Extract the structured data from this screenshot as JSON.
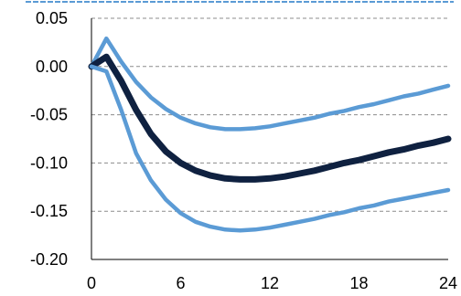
{
  "chart_data": {
    "type": "line",
    "title": "",
    "xlabel": "",
    "ylabel": "",
    "xlim": [
      0,
      24
    ],
    "ylim": [
      -0.2,
      0.05
    ],
    "x_ticks": [
      "0",
      "6",
      "12",
      "18",
      "24"
    ],
    "y_ticks": [
      "0.05",
      "0.00",
      "-0.05",
      "-0.10",
      "-0.15",
      "-0.20"
    ],
    "grid": "horizontal dashed",
    "legend": "none",
    "series": [
      {
        "role": "upper band",
        "color": "#5b9bd5",
        "x": [
          0,
          1,
          2,
          3,
          4,
          5,
          6,
          7,
          8,
          9,
          10,
          11,
          12,
          13,
          14,
          15,
          16,
          17,
          18,
          19,
          20,
          21,
          22,
          23,
          24
        ],
        "values": [
          0.0,
          0.029,
          0.005,
          -0.016,
          -0.032,
          -0.044,
          -0.053,
          -0.059,
          -0.063,
          -0.065,
          -0.065,
          -0.064,
          -0.062,
          -0.059,
          -0.056,
          -0.053,
          -0.049,
          -0.046,
          -0.042,
          -0.039,
          -0.035,
          -0.031,
          -0.028,
          -0.024,
          -0.02
        ]
      },
      {
        "role": "point estimate",
        "color": "#0f2140",
        "x": [
          0,
          1,
          2,
          3,
          4,
          5,
          6,
          7,
          8,
          9,
          10,
          11,
          12,
          13,
          14,
          15,
          16,
          17,
          18,
          19,
          20,
          21,
          22,
          23,
          24
        ],
        "values": [
          0.0,
          0.01,
          -0.015,
          -0.045,
          -0.07,
          -0.088,
          -0.1,
          -0.108,
          -0.113,
          -0.116,
          -0.117,
          -0.117,
          -0.116,
          -0.114,
          -0.111,
          -0.108,
          -0.104,
          -0.1,
          -0.097,
          -0.093,
          -0.089,
          -0.086,
          -0.082,
          -0.079,
          -0.075
        ]
      },
      {
        "role": "lower band",
        "color": "#5b9bd5",
        "x": [
          0,
          1,
          2,
          3,
          4,
          5,
          6,
          7,
          8,
          9,
          10,
          11,
          12,
          13,
          14,
          15,
          16,
          17,
          18,
          19,
          20,
          21,
          22,
          23,
          24
        ],
        "values": [
          0.0,
          -0.005,
          -0.045,
          -0.09,
          -0.118,
          -0.138,
          -0.152,
          -0.161,
          -0.166,
          -0.169,
          -0.17,
          -0.169,
          -0.167,
          -0.164,
          -0.161,
          -0.158,
          -0.154,
          -0.151,
          -0.147,
          -0.144,
          -0.14,
          -0.137,
          -0.134,
          -0.131,
          -0.128
        ]
      }
    ]
  }
}
